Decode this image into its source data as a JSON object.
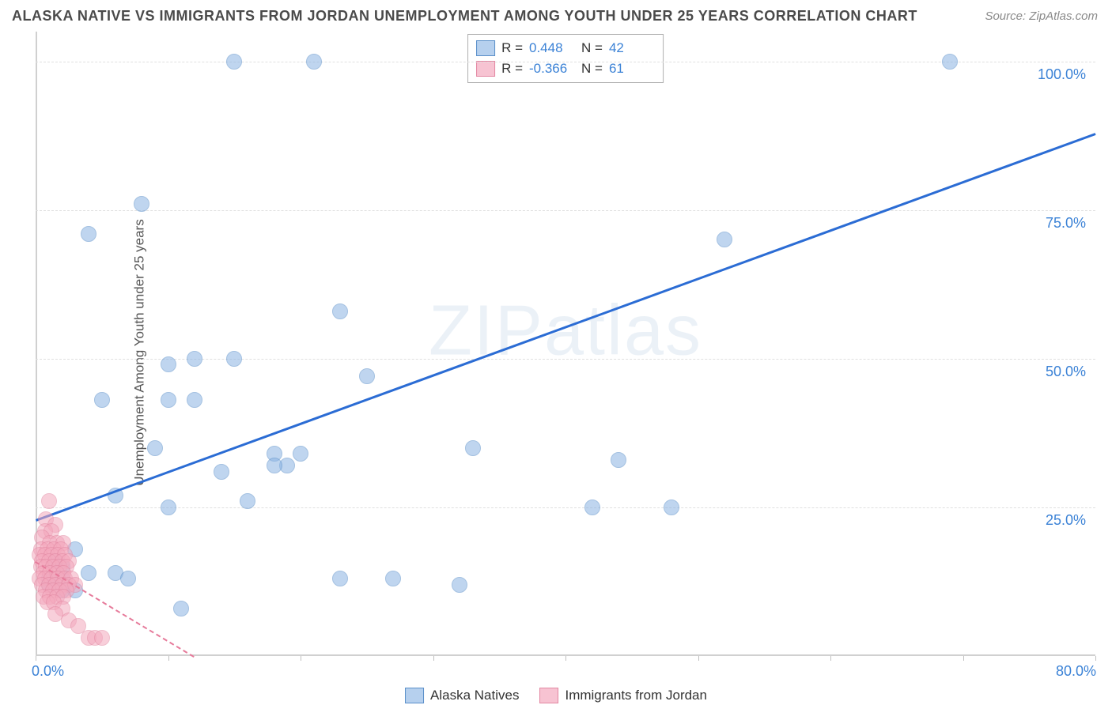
{
  "title": "ALASKA NATIVE VS IMMIGRANTS FROM JORDAN UNEMPLOYMENT AMONG YOUTH UNDER 25 YEARS CORRELATION CHART",
  "source": "Source: ZipAtlas.com",
  "ylabel": "Unemployment Among Youth under 25 years",
  "watermark": "ZIPatlas",
  "chart": {
    "type": "scatter",
    "xlim": [
      0,
      80
    ],
    "ylim": [
      0,
      105
    ],
    "x_ticks": [
      0,
      10,
      20,
      30,
      40,
      50,
      60,
      70,
      80
    ],
    "x_tick_labels": {
      "0": "0.0%",
      "80": "80.0%"
    },
    "y_grid": [
      25,
      50,
      75,
      100
    ],
    "y_tick_labels": {
      "25": "25.0%",
      "50": "50.0%",
      "75": "75.0%",
      "100": "100.0%"
    },
    "background_color": "#ffffff",
    "grid_color": "#e0e0e0",
    "axis_color": "#d0d0d0",
    "label_color": "#3b82d6",
    "label_fontsize": 18,
    "marker_radius": 9,
    "marker_opacity": 0.55,
    "line_width_blue": 3,
    "line_width_pink": 2,
    "line_style_pink": "dashed"
  },
  "series": [
    {
      "name": "Alaska Natives",
      "color": "#8bb4e3",
      "line_color": "#2b6cd4",
      "stroke": "#5a8fc9",
      "R": "0.448",
      "N": "42",
      "points": [
        [
          15,
          100
        ],
        [
          21,
          100
        ],
        [
          69,
          100
        ],
        [
          8,
          76
        ],
        [
          4,
          71
        ],
        [
          52,
          70
        ],
        [
          23,
          58
        ],
        [
          12,
          50
        ],
        [
          15,
          50
        ],
        [
          10,
          49
        ],
        [
          25,
          47
        ],
        [
          5,
          43
        ],
        [
          10,
          43
        ],
        [
          12,
          43
        ],
        [
          9,
          35
        ],
        [
          33,
          35
        ],
        [
          18,
          34
        ],
        [
          20,
          34
        ],
        [
          44,
          33
        ],
        [
          19,
          32
        ],
        [
          18,
          32
        ],
        [
          14,
          31
        ],
        [
          6,
          27
        ],
        [
          10,
          25
        ],
        [
          16,
          26
        ],
        [
          42,
          25
        ],
        [
          48,
          25
        ],
        [
          3,
          18
        ],
        [
          2,
          15
        ],
        [
          4,
          14
        ],
        [
          6,
          14
        ],
        [
          7,
          13
        ],
        [
          23,
          13
        ],
        [
          27,
          13
        ],
        [
          32,
          12
        ],
        [
          11,
          8
        ],
        [
          1,
          12
        ],
        [
          2,
          11
        ],
        [
          3,
          11
        ],
        [
          1.5,
          16
        ],
        [
          1,
          13
        ],
        [
          2,
          13
        ]
      ],
      "trend": {
        "x1": 0,
        "y1": 23,
        "x2": 80,
        "y2": 88
      }
    },
    {
      "name": "Immigrants from Jordan",
      "color": "#f4a8bd",
      "line_color": "#e67a9a",
      "stroke": "#e389a3",
      "R": "-0.366",
      "N": "61",
      "points": [
        [
          1,
          26
        ],
        [
          0.8,
          23
        ],
        [
          1.5,
          22
        ],
        [
          0.7,
          21
        ],
        [
          1.2,
          21
        ],
        [
          0.5,
          20
        ],
        [
          1.1,
          19
        ],
        [
          1.6,
          19
        ],
        [
          2.1,
          19
        ],
        [
          0.4,
          18
        ],
        [
          0.9,
          18
        ],
        [
          1.4,
          18
        ],
        [
          1.9,
          18
        ],
        [
          0.3,
          17
        ],
        [
          0.7,
          17
        ],
        [
          1.2,
          17
        ],
        [
          1.7,
          17
        ],
        [
          2.2,
          17
        ],
        [
          0.5,
          16
        ],
        [
          1.0,
          16
        ],
        [
          1.5,
          16
        ],
        [
          2.0,
          16
        ],
        [
          2.5,
          16
        ],
        [
          0.4,
          15
        ],
        [
          0.8,
          15
        ],
        [
          1.3,
          15
        ],
        [
          1.8,
          15
        ],
        [
          2.3,
          15
        ],
        [
          0.6,
          14
        ],
        [
          1.1,
          14
        ],
        [
          1.6,
          14
        ],
        [
          2.1,
          14
        ],
        [
          0.3,
          13
        ],
        [
          0.7,
          13
        ],
        [
          1.2,
          13
        ],
        [
          1.7,
          13
        ],
        [
          2.2,
          13
        ],
        [
          2.7,
          13
        ],
        [
          0.5,
          12
        ],
        [
          1.0,
          12
        ],
        [
          1.5,
          12
        ],
        [
          2.0,
          12
        ],
        [
          2.5,
          12
        ],
        [
          3.0,
          12
        ],
        [
          0.8,
          11
        ],
        [
          1.3,
          11
        ],
        [
          1.8,
          11
        ],
        [
          2.3,
          11
        ],
        [
          0.6,
          10
        ],
        [
          1.1,
          10
        ],
        [
          1.6,
          10
        ],
        [
          2.1,
          10
        ],
        [
          0.9,
          9
        ],
        [
          1.4,
          9
        ],
        [
          2.0,
          8
        ],
        [
          1.5,
          7
        ],
        [
          2.5,
          6
        ],
        [
          3.2,
          5
        ],
        [
          4.0,
          3
        ],
        [
          4.5,
          3
        ],
        [
          5.0,
          3
        ]
      ],
      "trend": {
        "x1": 0,
        "y1": 16,
        "x2": 12,
        "y2": 0
      }
    }
  ],
  "legend": {
    "top_rows": [
      {
        "swatch_fill": "#b6d0ee",
        "swatch_stroke": "#5a8fc9",
        "R_label": "R =",
        "N_label": "N ="
      },
      {
        "swatch_fill": "#f7c3d2",
        "swatch_stroke": "#e389a3",
        "R_label": "R =",
        "N_label": "N ="
      }
    ],
    "bottom_labels": [
      "Alaska Natives",
      "Immigrants from Jordan"
    ]
  }
}
